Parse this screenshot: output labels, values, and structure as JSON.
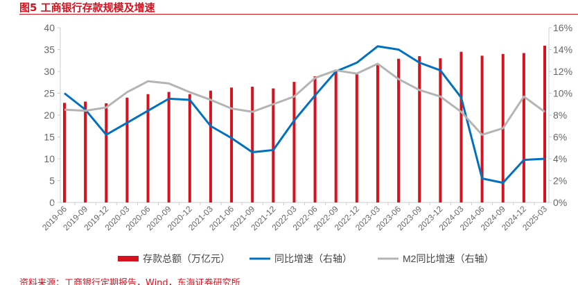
{
  "title": "图5  工商银行存款规模及增速",
  "source": "资料来源：工商银行定期报告，Wind，东海证券研究所",
  "chart_data": {
    "type": "bar+line",
    "categories": [
      "2019-06",
      "2019-09",
      "2019-12",
      "2020-03",
      "2020-06",
      "2020-09",
      "2020-12",
      "2021-03",
      "2021-06",
      "2021-09",
      "2021-12",
      "2022-03",
      "2022-06",
      "2022-09",
      "2022-12",
      "2023-03",
      "2023-06",
      "2023-09",
      "2023-12",
      "2024-03",
      "2024-06",
      "2024-09",
      "2024-12",
      "2025-03"
    ],
    "y_left": {
      "range": [
        0,
        40
      ],
      "ticks": [
        "0",
        "5",
        "10",
        "15",
        "20",
        "25",
        "30",
        "35",
        "40"
      ]
    },
    "y_right": {
      "range": [
        0,
        16
      ],
      "ticks": [
        "0%",
        "2%",
        "4%",
        "6%",
        "8%",
        "10%",
        "12%",
        "14%",
        "16%"
      ]
    },
    "grid": false,
    "legend_placement": "bottom",
    "series": [
      {
        "name": "存款总额（万亿元）",
        "type": "bar",
        "axis": "left",
        "color": "#d6121f",
        "values": [
          22.8,
          23.1,
          22.7,
          24.0,
          24.8,
          25.3,
          24.8,
          25.6,
          26.3,
          26.5,
          26.1,
          27.6,
          28.9,
          29.9,
          29.6,
          31.6,
          32.9,
          33.5,
          33.0,
          34.5,
          33.6,
          34.0,
          34.2,
          35.9
        ]
      },
      {
        "name": "同比增速（右轴）",
        "type": "line",
        "axis": "right",
        "color": "#0070c0",
        "values": [
          10.0,
          8.5,
          6.2,
          7.3,
          8.4,
          9.5,
          9.4,
          7.0,
          5.9,
          4.6,
          4.8,
          7.5,
          9.8,
          12.0,
          12.8,
          14.3,
          14.0,
          12.8,
          12.1,
          9.6,
          2.2,
          1.8,
          3.9,
          4.0
        ]
      },
      {
        "name": "M2同比增速（右轴）",
        "type": "line",
        "axis": "right",
        "color": "#b4b4b4",
        "values": [
          8.5,
          8.4,
          8.7,
          10.1,
          11.1,
          10.9,
          10.1,
          9.4,
          8.6,
          8.3,
          9.0,
          9.7,
          11.4,
          12.1,
          11.8,
          12.7,
          11.3,
          10.3,
          9.7,
          8.3,
          6.2,
          6.8,
          9.7,
          8.3
        ]
      }
    ]
  }
}
